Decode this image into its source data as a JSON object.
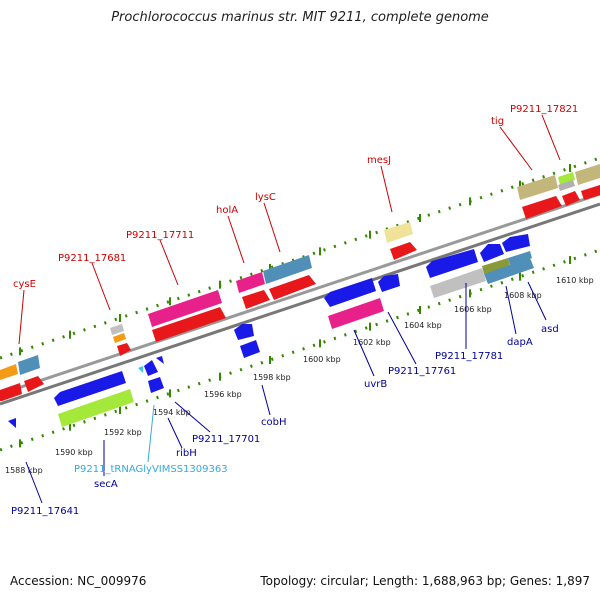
{
  "title": "Prochlorococcus marinus str. MIT 9211, complete genome",
  "footer": {
    "accession": "Accession: NC_009976",
    "summary": "Topology: circular; Length: 1,688,963 bp; Genes: 1,897"
  },
  "colors": {
    "forward_label": "#cc0000",
    "reverse_label": "#000099",
    "trna_label": "#33aadd",
    "backbone": "#888888",
    "tick": "#338800"
  },
  "ticks": [
    "1588 kbp",
    "1590 kbp",
    "1592 kbp",
    "1594 kbp",
    "1596 kbp",
    "1598 kbp",
    "1600 kbp",
    "1602 kbp",
    "1604 kbp",
    "1606 kbp",
    "1608 kbp",
    "1610 kbp"
  ],
  "gene_labels_forward": [
    "cysE",
    "P9211_17681",
    "P9211_17711",
    "holA",
    "lysC",
    "mesJ",
    "tig",
    "P9211_17821"
  ],
  "gene_labels_reverse": [
    "P9211_17641",
    "secA",
    "P9211_tRNAGlyVIMSS1309363",
    "ribH",
    "P9211_17701",
    "cobH",
    "uvrB",
    "P9211_17761",
    "P9211_17781",
    "dapA",
    "asd"
  ]
}
